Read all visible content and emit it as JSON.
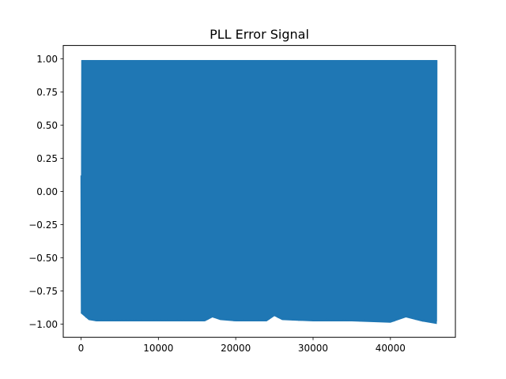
{
  "chart_data": {
    "type": "line",
    "title": "PLL Error Signal",
    "xlabel": "",
    "ylabel": "",
    "xlim": [
      -2300,
      48400
    ],
    "ylim": [
      -1.1,
      1.1
    ],
    "x_ticks": [
      0,
      10000,
      20000,
      30000,
      40000
    ],
    "x_tick_labels": [
      "0",
      "10000",
      "20000",
      "30000",
      "40000"
    ],
    "y_ticks": [
      1.0,
      0.75,
      0.5,
      0.25,
      0.0,
      -0.25,
      -0.5,
      -0.75,
      -1.0
    ],
    "y_tick_labels": [
      "1.00",
      "0.75",
      "0.50",
      "0.25",
      "0.00",
      "−0.25",
      "−0.50",
      "−0.75",
      "−1.00"
    ],
    "grid": false,
    "series": [
      {
        "color": "#1f77b4",
        "x_range": [
          0,
          46000
        ],
        "upper_envelope": [
          [
            0,
            0.12
          ],
          [
            100,
            0.99
          ],
          [
            5000,
            0.99
          ],
          [
            10000,
            0.99
          ],
          [
            15000,
            0.99
          ],
          [
            20000,
            0.99
          ],
          [
            25000,
            0.99
          ],
          [
            30000,
            0.99
          ],
          [
            35000,
            0.99
          ],
          [
            40000,
            0.99
          ],
          [
            46000,
            0.99
          ]
        ],
        "lower_envelope": [
          [
            0,
            -0.92
          ],
          [
            1000,
            -0.97
          ],
          [
            2000,
            -0.98
          ],
          [
            5000,
            -0.98
          ],
          [
            8000,
            -0.98
          ],
          [
            12000,
            -0.98
          ],
          [
            16000,
            -0.98
          ],
          [
            17000,
            -0.95
          ],
          [
            18000,
            -0.97
          ],
          [
            20000,
            -0.98
          ],
          [
            24000,
            -0.98
          ],
          [
            25000,
            -0.94
          ],
          [
            26000,
            -0.97
          ],
          [
            30000,
            -0.98
          ],
          [
            35000,
            -0.98
          ],
          [
            40000,
            -0.99
          ],
          [
            42000,
            -0.95
          ],
          [
            44000,
            -0.98
          ],
          [
            46000,
            -1.0
          ]
        ]
      }
    ]
  }
}
